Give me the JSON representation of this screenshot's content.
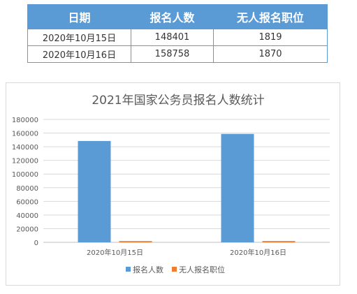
{
  "table": {
    "headers": [
      "日期",
      "报名人数",
      "无人报名职位"
    ],
    "rows": [
      [
        "2020年10月15日",
        "148401",
        "1819"
      ],
      [
        "2020年10月16日",
        "158758",
        "1870"
      ]
    ]
  },
  "chart_data": {
    "type": "bar",
    "title": "2021年国家公务员报名人数统计",
    "categories": [
      "2020年10月15日",
      "2020年10月16日"
    ],
    "series": [
      {
        "name": "报名人数",
        "values": [
          148401,
          158758
        ],
        "color": "#5b9bd5"
      },
      {
        "name": "无人报名职位",
        "values": [
          1819,
          1870
        ],
        "color": "#ed7d31"
      }
    ],
    "ylim": [
      0,
      180000
    ],
    "yticks": [
      "0",
      "20000",
      "40000",
      "60000",
      "80000",
      "100000",
      "120000",
      "140000",
      "160000",
      "180000"
    ],
    "grid": true,
    "legend": "bottom"
  }
}
